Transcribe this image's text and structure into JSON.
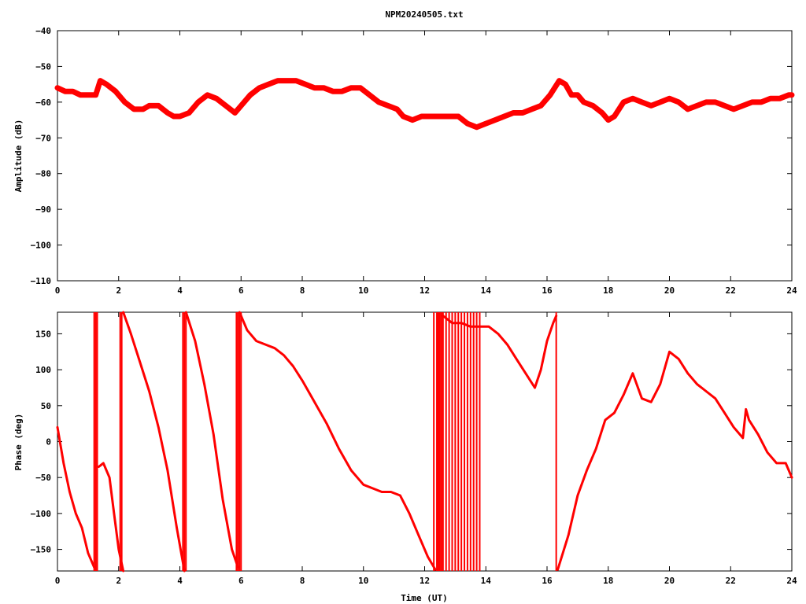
{
  "chart_data": [
    {
      "type": "line",
      "title": "NPM20240505.txt",
      "ylabel": "Amplitude (dB)",
      "xlabel": "",
      "xlim": [
        0,
        24
      ],
      "ylim": [
        -110,
        -40
      ],
      "xticks": [
        0,
        2,
        4,
        6,
        8,
        10,
        12,
        14,
        16,
        18,
        20,
        22,
        24
      ],
      "yticks": [
        -40,
        -50,
        -60,
        -70,
        -80,
        -90,
        -100,
        -110
      ],
      "x": [
        0,
        0.25,
        0.5,
        0.75,
        1.0,
        1.25,
        1.4,
        1.6,
        1.9,
        2.2,
        2.5,
        2.8,
        3.0,
        3.3,
        3.6,
        3.8,
        4.0,
        4.3,
        4.6,
        4.9,
        5.2,
        5.5,
        5.8,
        6.0,
        6.3,
        6.6,
        6.9,
        7.2,
        7.5,
        7.8,
        8.1,
        8.4,
        8.7,
        9.0,
        9.3,
        9.6,
        9.9,
        10.2,
        10.5,
        10.8,
        11.1,
        11.3,
        11.6,
        11.9,
        12.2,
        12.5,
        12.8,
        13.1,
        13.4,
        13.7,
        14.0,
        14.3,
        14.6,
        14.9,
        15.2,
        15.5,
        15.8,
        16.1,
        16.4,
        16.6,
        16.8,
        17.0,
        17.2,
        17.5,
        17.8,
        18.0,
        18.2,
        18.5,
        18.8,
        19.1,
        19.4,
        19.7,
        20.0,
        20.3,
        20.6,
        20.9,
        21.2,
        21.5,
        21.8,
        22.1,
        22.4,
        22.7,
        23.0,
        23.3,
        23.6,
        23.9,
        24.0
      ],
      "y": [
        -56,
        -57,
        -57,
        -58,
        -58,
        -58,
        -54,
        -55,
        -57,
        -60,
        -62,
        -62,
        -61,
        -61,
        -63,
        -64,
        -64,
        -63,
        -60,
        -58,
        -59,
        -61,
        -63,
        -61,
        -58,
        -56,
        -55,
        -54,
        -54,
        -54,
        -55,
        -56,
        -56,
        -57,
        -57,
        -56,
        -56,
        -58,
        -60,
        -61,
        -62,
        -64,
        -65,
        -64,
        -64,
        -64,
        -64,
        -64,
        -66,
        -67,
        -66,
        -65,
        -64,
        -63,
        -63,
        -62,
        -61,
        -58,
        -54,
        -55,
        -58,
        -58,
        -60,
        -61,
        -63,
        -65,
        -64,
        -60,
        -59,
        -60,
        -61,
        -60,
        -59,
        -60,
        -62,
        -61,
        -60,
        -60,
        -61,
        -62,
        -61,
        -60,
        -60,
        -59,
        -59,
        -58,
        -58
      ],
      "line_color": "#ff0000"
    },
    {
      "type": "line",
      "title": "",
      "ylabel": "Phase (deg)",
      "xlabel": "Time (UT)",
      "xlim": [
        0,
        24
      ],
      "ylim": [
        -180,
        180
      ],
      "xticks": [
        0,
        2,
        4,
        6,
        8,
        10,
        12,
        14,
        16,
        18,
        20,
        22,
        24
      ],
      "yticks": [
        150,
        100,
        50,
        0,
        -50,
        -100,
        -150
      ],
      "segments": [
        {
          "x": [
            0.0,
            0.2,
            0.4,
            0.6,
            0.8,
            1.0,
            1.2
          ],
          "y": [
            20,
            -30,
            -70,
            -100,
            -120,
            -155,
            -175
          ]
        },
        {
          "x": [
            1.35,
            1.5,
            1.7,
            1.85,
            2.0,
            2.15
          ],
          "y": [
            -35,
            -30,
            -50,
            -100,
            -150,
            -180
          ]
        },
        {
          "x": [
            2.15,
            2.4,
            2.7,
            3.0,
            3.3,
            3.6,
            3.9,
            4.15
          ],
          "y": [
            180,
            150,
            110,
            70,
            20,
            -40,
            -120,
            -180
          ]
        },
        {
          "x": [
            4.2,
            4.5,
            4.8,
            5.1,
            5.4,
            5.7,
            5.9
          ],
          "y": [
            180,
            140,
            80,
            10,
            -80,
            -150,
            -175
          ]
        },
        {
          "x": [
            5.95,
            6.2,
            6.5,
            6.8,
            7.1,
            7.4,
            7.7,
            8.0,
            8.4,
            8.8,
            9.2,
            9.6,
            10.0,
            10.3,
            10.6,
            10.9,
            11.2,
            11.5,
            11.8,
            12.1,
            12.35
          ],
          "y": [
            180,
            155,
            140,
            135,
            130,
            120,
            105,
            85,
            55,
            25,
            -10,
            -40,
            -60,
            -65,
            -70,
            -70,
            -75,
            -100,
            -130,
            -160,
            -178
          ]
        },
        {
          "x": [
            12.6,
            12.9,
            13.2,
            13.5,
            13.8,
            14.1,
            14.4,
            14.7,
            15.0,
            15.3,
            15.6,
            15.8,
            16.0,
            16.2,
            16.3
          ],
          "y": [
            175,
            165,
            165,
            160,
            160,
            160,
            150,
            135,
            115,
            95,
            75,
            100,
            140,
            165,
            175
          ]
        },
        {
          "x": [
            16.35,
            16.7,
            17.0,
            17.3,
            17.6,
            17.9,
            18.2,
            18.5,
            18.8,
            19.1,
            19.4,
            19.7,
            20.0,
            20.3,
            20.6,
            20.9,
            21.2,
            21.5,
            21.8,
            22.1,
            22.4,
            22.5,
            22.6,
            22.9,
            23.2,
            23.5,
            23.8,
            24.0
          ],
          "y": [
            -178,
            -130,
            -75,
            -40,
            -10,
            30,
            40,
            65,
            95,
            60,
            55,
            80,
            125,
            115,
            95,
            80,
            70,
            60,
            40,
            20,
            5,
            45,
            30,
            10,
            -15,
            -30,
            -30,
            -50
          ]
        }
      ],
      "wrap_x": [
        1.2,
        1.25,
        1.3,
        2.05,
        2.1,
        4.1,
        4.15,
        4.2,
        5.85,
        5.9,
        5.95,
        6.0,
        12.3,
        12.4,
        12.45,
        12.5,
        12.55,
        12.6,
        12.7,
        12.8,
        12.9,
        13.0,
        13.1,
        13.2,
        13.3,
        13.4,
        13.5,
        13.6,
        13.7,
        13.8,
        16.3
      ],
      "line_color": "#ff0000"
    }
  ]
}
